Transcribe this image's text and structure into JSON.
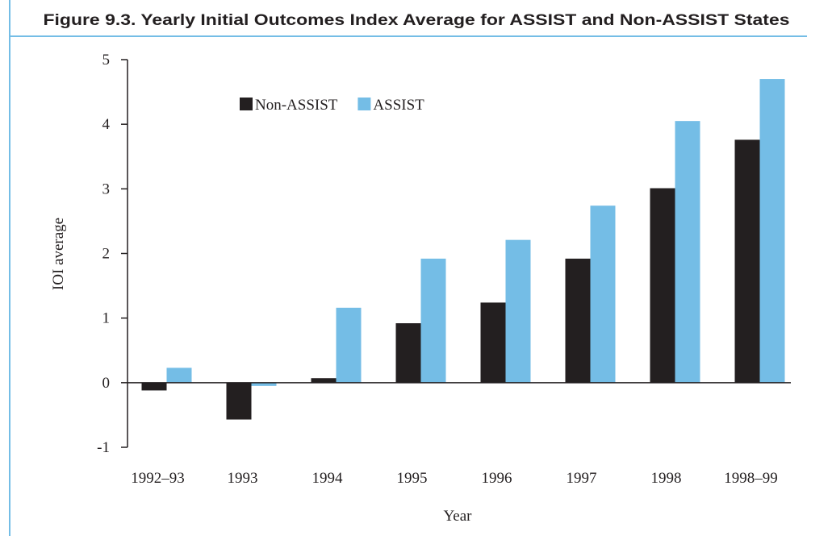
{
  "chart_data": {
    "type": "bar",
    "title": "Figure 9.3. Yearly Initial Outcomes Index Average for ASSIST and Non-ASSIST States",
    "x_label": "Year",
    "y_label": "IOI average",
    "categories": [
      "1992–93",
      "1993",
      "1994",
      "1995",
      "1996",
      "1997",
      "1998",
      "1998–99"
    ],
    "series": [
      {
        "name": "Non-ASSIST",
        "color": "#231f20",
        "values": [
          -0.12,
          -0.57,
          0.07,
          0.92,
          1.24,
          1.92,
          3.01,
          3.76
        ]
      },
      {
        "name": "ASSIST",
        "color": "#74bde6",
        "values": [
          0.23,
          -0.05,
          1.16,
          1.92,
          2.21,
          2.74,
          4.05,
          4.7
        ]
      }
    ],
    "ylim": [
      -1,
      5
    ],
    "yticks": [
      -1,
      0,
      1,
      2,
      3,
      4,
      5
    ],
    "grid": false,
    "legend": "top-left"
  }
}
